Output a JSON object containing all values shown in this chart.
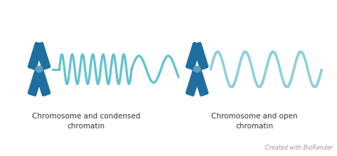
{
  "background_color": "#ffffff",
  "chromosome_color": "#1e6f9f",
  "centromere_color": "#5b9fc0",
  "condensed_chromatin_color": "#45b8c8",
  "open_chromatin_color": "#90d0dc",
  "label1": "Chromosome and condensed\nchromatin",
  "label2": "Chromosome and open\nchromatin",
  "watermark": "Created with BioRender",
  "label_fontsize": 7.5,
  "watermark_fontsize": 5.8,
  "title_color": "#333333",
  "watermark_color": "#999999"
}
